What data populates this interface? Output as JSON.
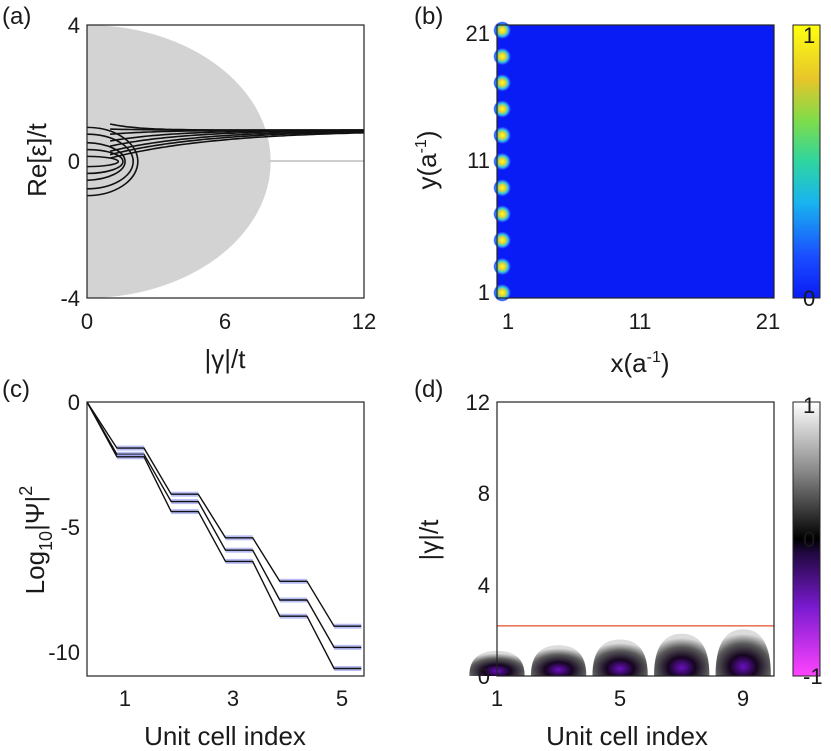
{
  "chart_data": [
    {
      "panel": "(a)",
      "type": "line",
      "xlabel": "|γ|/t",
      "ylabel": "Re[ε]/t",
      "xlim": [
        0,
        12
      ],
      "ylim": [
        -4,
        4
      ],
      "xticks": [
        "0",
        "6",
        "12"
      ],
      "yticks": [
        "4",
        "0",
        "-4"
      ],
      "shaded_region": {
        "description": "continuum band",
        "radius_x": 7.8,
        "radius_y": 4,
        "tail_value": 0
      },
      "series_note": "bound-state energies merging to ~0.9 for large |γ|"
    },
    {
      "panel": "(b)",
      "type": "heatmap",
      "xlabel": "x(a",
      "ylabel": "y(a",
      "label_sup": "-1",
      "label_close": ")",
      "xlim": [
        1,
        21
      ],
      "ylim": [
        1,
        21
      ],
      "xticks": [
        "1",
        "11",
        "21"
      ],
      "yticks": [
        "21",
        "11",
        "1"
      ],
      "colorbar": {
        "min": 0,
        "max": 1,
        "ticks": [
          "1",
          "0"
        ]
      },
      "edge_spots_y": [
        1,
        3,
        5,
        7,
        9,
        11,
        13,
        15,
        17,
        19,
        21
      ],
      "edge_spot_x": 1
    },
    {
      "panel": "(c)",
      "type": "line",
      "xlabel": "Unit cell index",
      "ylabel_base": "Log",
      "ylabel_sub": "10",
      "ylabel_rest": "|Ψ|",
      "ylabel_sup": "2",
      "xlim": [
        0.2,
        5.3
      ],
      "ylim": [
        -11,
        0
      ],
      "xticks": [
        "1",
        "3",
        "5"
      ],
      "yticks": [
        "0",
        "-5",
        "-10"
      ],
      "series": [
        {
          "name": "upper",
          "steps": [
            0,
            -1.85,
            -3.7,
            -5.45,
            -7.2,
            -9.0
          ]
        },
        {
          "name": "middle",
          "steps": [
            0,
            -2.1,
            -4.0,
            -5.95,
            -7.95,
            -9.85
          ]
        },
        {
          "name": "lower",
          "steps": [
            0,
            -2.2,
            -4.4,
            -6.4,
            -8.6,
            -10.7
          ]
        }
      ]
    },
    {
      "panel": "(d)",
      "type": "heatmap",
      "xlabel": "Unit cell index",
      "ylabel": "|γ|/t",
      "xlim": [
        1,
        10
      ],
      "ylim": [
        0,
        12
      ],
      "xticks": [
        "1",
        "5",
        "9"
      ],
      "yticks": [
        "12",
        "8",
        "4",
        "0"
      ],
      "threshold_line": 2.2,
      "colorbar": {
        "min": -1,
        "max": 1,
        "ticks": [
          "1",
          "0",
          "-1"
        ]
      }
    }
  ],
  "colors": {
    "shade": "#d3d3d3",
    "field": "#0a1cf5",
    "edge_line": "#e8785a",
    "step_band": "#9aa0f0"
  }
}
